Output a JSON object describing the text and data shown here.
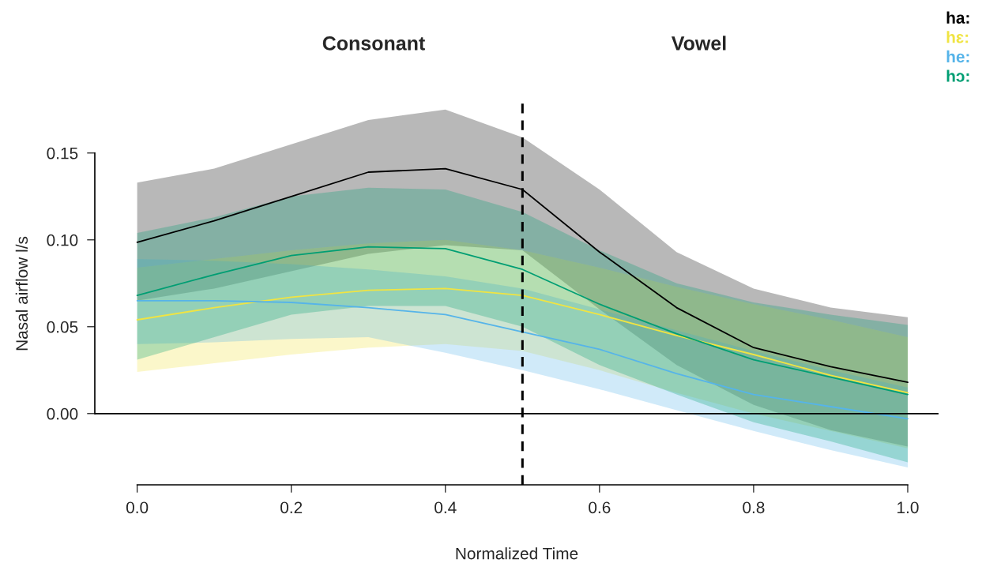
{
  "chart_data": {
    "type": "line",
    "xlabel": "Normalized Time",
    "ylabel": "Nasal airflow l/s",
    "annotations": [
      "Consonant",
      "Vowel"
    ],
    "x": [
      0.0,
      0.1,
      0.2,
      0.3,
      0.4,
      0.5,
      0.6,
      0.7,
      0.8,
      0.9,
      1.0
    ],
    "series": [
      {
        "name": "ha:",
        "color": "#000000",
        "values": [
          0.0986,
          0.111,
          0.125,
          0.139,
          0.141,
          0.129,
          0.093,
          0.061,
          0.038,
          0.027,
          0.018
        ],
        "upper": [
          0.133,
          0.141,
          0.155,
          0.169,
          0.175,
          0.159,
          0.129,
          0.093,
          0.072,
          0.061,
          0.0555
        ],
        "lower": [
          0.065,
          0.072,
          0.082,
          0.092,
          0.097,
          0.094,
          0.06,
          0.028,
          0.005,
          -0.0095,
          -0.019
        ]
      },
      {
        "name": "hɛ:",
        "color": "#f0e442",
        "values": [
          0.054,
          0.061,
          0.067,
          0.071,
          0.072,
          0.068,
          0.057,
          0.045,
          0.034,
          0.022,
          0.012
        ],
        "upper": [
          0.084,
          0.089,
          0.094,
          0.098,
          0.1,
          0.094,
          0.084,
          0.073,
          0.063,
          0.054,
          0.044
        ],
        "lower": [
          0.024,
          0.029,
          0.034,
          0.038,
          0.04,
          0.036,
          0.025,
          0.012,
          0.0,
          -0.01,
          -0.02
        ]
      },
      {
        "name": "he:",
        "color": "#56b4e9",
        "values": [
          0.065,
          0.065,
          0.064,
          0.061,
          0.057,
          0.047,
          0.037,
          0.023,
          0.011,
          0.004,
          -0.003
        ],
        "upper": [
          0.089,
          0.088,
          0.086,
          0.083,
          0.079,
          0.072,
          0.06,
          0.048,
          0.036,
          0.025,
          0.015
        ],
        "lower": [
          0.04,
          0.041,
          0.043,
          0.044,
          0.035,
          0.025,
          0.014,
          0.002,
          -0.01,
          -0.021,
          -0.031
        ]
      },
      {
        "name": "hɔ:",
        "color": "#009e73",
        "values": [
          0.068,
          0.08,
          0.091,
          0.096,
          0.095,
          0.083,
          0.063,
          0.046,
          0.031,
          0.021,
          0.011
        ],
        "upper": [
          0.104,
          0.113,
          0.125,
          0.13,
          0.129,
          0.116,
          0.094,
          0.075,
          0.064,
          0.057,
          0.051
        ],
        "lower": [
          0.031,
          0.044,
          0.057,
          0.062,
          0.062,
          0.05,
          0.028,
          0.011,
          -0.005,
          -0.016,
          -0.028
        ]
      }
    ],
    "xlim": [
      -0.055,
      1.04
    ],
    "ylim": [
      -0.041,
      0.179
    ],
    "xticks": [
      {
        "value": 0.0,
        "label": "0.0"
      },
      {
        "value": 0.2,
        "label": "0.2"
      },
      {
        "value": 0.4,
        "label": "0.4"
      },
      {
        "value": 0.6,
        "label": "0.6"
      },
      {
        "value": 0.8,
        "label": "0.8"
      },
      {
        "value": 1.0,
        "label": "1.0"
      }
    ],
    "yticks": [
      {
        "value": 0.0,
        "label": "0.00"
      },
      {
        "value": 0.05,
        "label": "0.05"
      },
      {
        "value": 0.1,
        "label": "0.10"
      },
      {
        "value": 0.15,
        "label": "0.15"
      }
    ],
    "ref_lines": [
      {
        "axis": "x",
        "value": 0.5,
        "line_style": "dashed",
        "color": "#000000"
      },
      {
        "axis": "y",
        "value": 0,
        "line_style": "solid",
        "color": "#000000"
      }
    ],
    "grid": false,
    "legend": "top right",
    "line_style": "solid",
    "marker": "none"
  }
}
